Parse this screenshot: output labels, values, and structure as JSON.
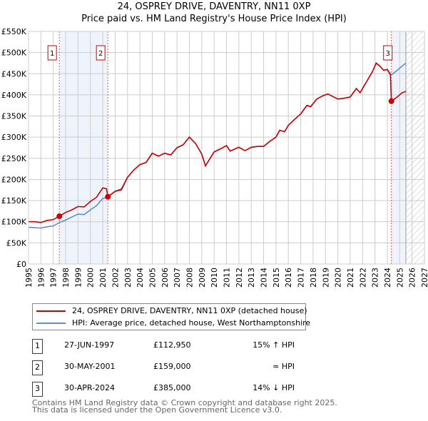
{
  "chart_data": {
    "type": "line",
    "title": "24, OSPREY DRIVE, DAVENTRY, NN11 0XP",
    "subtitle": "Price paid vs. HM Land Registry's House Price Index (HPI)",
    "xlim": [
      1995,
      2027
    ],
    "ylim": [
      0,
      550000
    ],
    "x_ticks": [
      "1995",
      "1996",
      "1997",
      "1998",
      "1999",
      "2000",
      "2001",
      "2002",
      "2003",
      "2004",
      "2005",
      "2006",
      "2007",
      "2008",
      "2009",
      "2010",
      "2011",
      "2012",
      "2013",
      "2014",
      "2015",
      "2016",
      "2017",
      "2018",
      "2019",
      "2020",
      "2021",
      "2022",
      "2023",
      "2024",
      "2025",
      "2026",
      "2027"
    ],
    "y_ticks": [
      {
        "v": 0,
        "l": "£0"
      },
      {
        "v": 50000,
        "l": "£50K"
      },
      {
        "v": 100000,
        "l": "£100K"
      },
      {
        "v": 150000,
        "l": "£150K"
      },
      {
        "v": 200000,
        "l": "£200K"
      },
      {
        "v": 250000,
        "l": "£250K"
      },
      {
        "v": 300000,
        "l": "£300K"
      },
      {
        "v": 350000,
        "l": "£350K"
      },
      {
        "v": 400000,
        "l": "£400K"
      },
      {
        "v": 450000,
        "l": "£450K"
      },
      {
        "v": 500000,
        "l": "£500K"
      },
      {
        "v": 550000,
        "l": "£550K"
      }
    ],
    "grid": true,
    "shaded_ranges": [
      [
        1997.49,
        2001.41
      ],
      [
        2024.33,
        2025.5
      ]
    ],
    "hatched_from": 2025.5,
    "series": [
      {
        "name": "24, OSPREY DRIVE, DAVENTRY, NN11 0XP (detached house)",
        "color": "#cc0000",
        "x": [
          1995,
          1995.5,
          1996,
          1996.5,
          1997,
          1997.49,
          1998,
          1998.5,
          1999,
          1999.5,
          2000,
          2000.5,
          2001,
          2001.3,
          2001.41,
          2002,
          2002.5,
          2003,
          2003.5,
          2004,
          2004.5,
          2005,
          2005.5,
          2006,
          2006.5,
          2007,
          2007.5,
          2008,
          2008.5,
          2009,
          2009.3,
          2010,
          2010.5,
          2011,
          2011.3,
          2012,
          2012.5,
          2013,
          2013.5,
          2014,
          2014.5,
          2015,
          2015.3,
          2015.7,
          2016,
          2016.5,
          2017,
          2017.5,
          2017.8,
          2018.3,
          2018.8,
          2019.2,
          2019.6,
          2020,
          2020.5,
          2021,
          2021.5,
          2021.8,
          2022.3,
          2022.8,
          2023.1,
          2023.4,
          2023.7,
          2024,
          2024.25,
          2024.33,
          2024.8,
          2025.2,
          2025.5
        ],
        "y": [
          100000,
          100000,
          98000,
          103000,
          105000,
          112950,
          122000,
          128000,
          136000,
          135000,
          148000,
          158000,
          180000,
          178000,
          159000,
          172000,
          175000,
          205000,
          222000,
          235000,
          240000,
          262000,
          255000,
          262000,
          258000,
          275000,
          282000,
          300000,
          285000,
          260000,
          232000,
          265000,
          272000,
          280000,
          267000,
          276000,
          268000,
          276000,
          278000,
          278000,
          290000,
          300000,
          316000,
          313000,
          328000,
          342000,
          355000,
          375000,
          372000,
          390000,
          398000,
          402000,
          396000,
          390000,
          392000,
          395000,
          415000,
          405000,
          430000,
          455000,
          475000,
          468000,
          458000,
          460000,
          447000,
          385000,
          395000,
          405000,
          408000
        ]
      },
      {
        "name": "HPI: Average price, detached house, West Northamptonshire",
        "color": "#5b8fd4",
        "x": [
          1995,
          1995.5,
          1996,
          1996.5,
          1997,
          1997.49,
          1998,
          1998.5,
          1999,
          1999.5,
          2000,
          2000.5,
          2001,
          2001.41,
          2002,
          2002.5,
          2003,
          2003.5,
          2004,
          2004.5,
          2005,
          2005.5,
          2006,
          2006.5,
          2007,
          2007.5,
          2008,
          2008.5,
          2009,
          2009.3,
          2010,
          2010.5,
          2011,
          2011.3,
          2012,
          2012.5,
          2013,
          2013.5,
          2014,
          2014.5,
          2015,
          2015.3,
          2015.7,
          2016,
          2016.5,
          2017,
          2017.5,
          2017.8,
          2018.3,
          2018.8,
          2019.2,
          2019.6,
          2020,
          2020.5,
          2021,
          2021.5,
          2021.8,
          2022.3,
          2022.8,
          2023.1,
          2023.4,
          2023.7,
          2024,
          2024.33,
          2024.8,
          2025.2,
          2025.5
        ],
        "y": [
          87000,
          86000,
          85000,
          88000,
          90000,
          98000,
          104000,
          111000,
          118000,
          117000,
          128000,
          138000,
          155000,
          158000,
          172000,
          178000,
          205000,
          222000,
          235000,
          240000,
          262000,
          255000,
          262000,
          258000,
          275000,
          282000,
          300000,
          285000,
          260000,
          232000,
          265000,
          272000,
          280000,
          267000,
          276000,
          268000,
          276000,
          278000,
          278000,
          290000,
          300000,
          316000,
          313000,
          328000,
          342000,
          355000,
          375000,
          372000,
          390000,
          398000,
          402000,
          396000,
          390000,
          392000,
          395000,
          415000,
          405000,
          430000,
          455000,
          475000,
          468000,
          458000,
          460000,
          447000,
          458000,
          468000,
          475000
        ]
      }
    ],
    "sales": [
      {
        "n": "1",
        "x": 1997.49,
        "y": 112950
      },
      {
        "n": "2",
        "x": 2001.41,
        "y": 159000
      },
      {
        "n": "3",
        "x": 2024.33,
        "y": 385000
      }
    ]
  },
  "legend": {
    "red": "24, OSPREY DRIVE, DAVENTRY, NN11 0XP (detached house)",
    "blue": "HPI: Average price, detached house, West Northamptonshire"
  },
  "table": [
    {
      "n": "1",
      "date": "27-JUN-1997",
      "price": "£112,950",
      "hpi": "15% ↑ HPI"
    },
    {
      "n": "2",
      "date": "30-MAY-2001",
      "price": "£159,000",
      "hpi": "≈ HPI"
    },
    {
      "n": "3",
      "date": "30-APR-2024",
      "price": "£385,000",
      "hpi": "14% ↓ HPI"
    }
  ],
  "footer": {
    "line1": "Contains HM Land Registry data © Crown copyright and database right 2025.",
    "line2": "This data is licensed under the Open Government Licence v3.0."
  }
}
